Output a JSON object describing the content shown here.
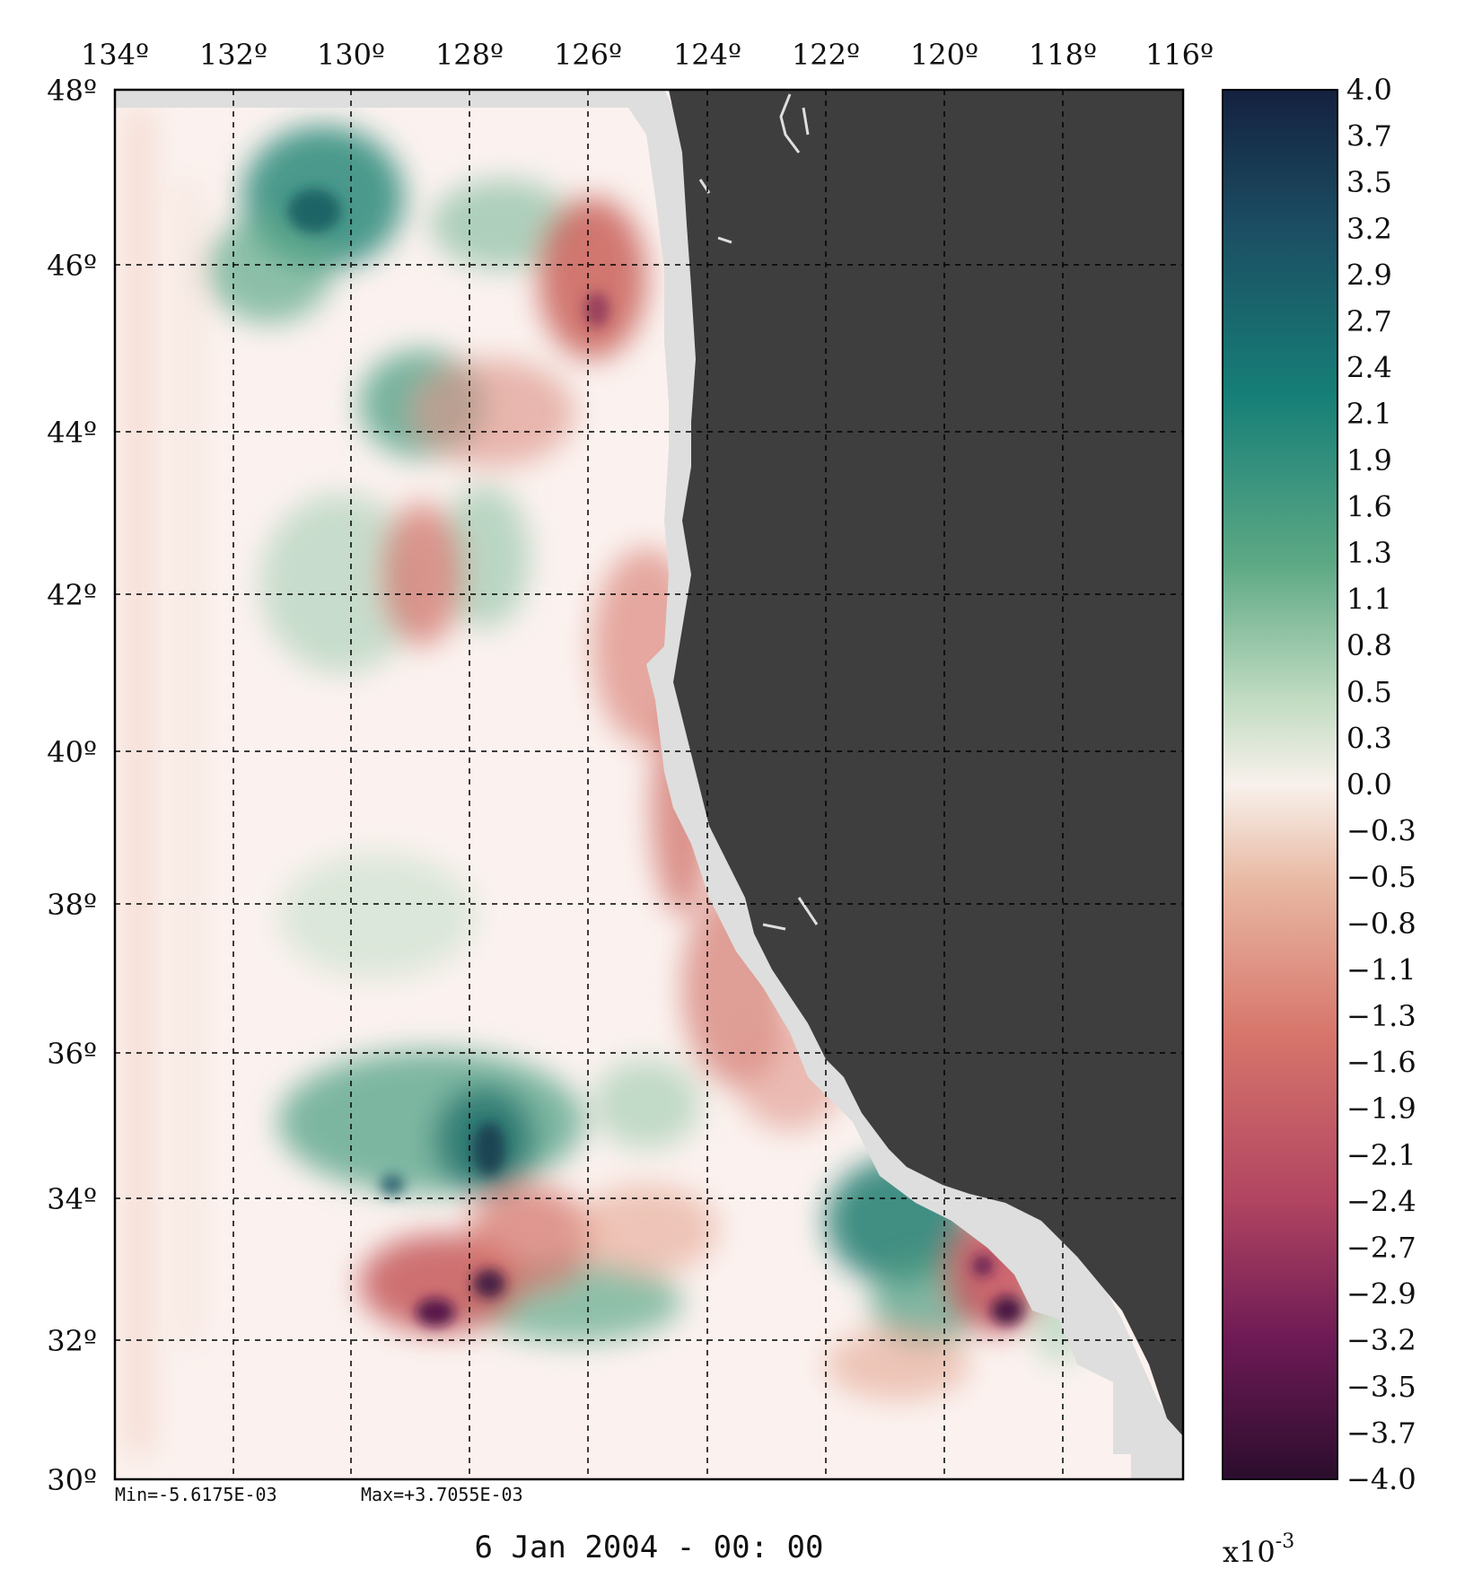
{
  "map": {
    "longitude_ticks": [
      "134º",
      "132º",
      "130º",
      "128º",
      "126º",
      "124º",
      "122º",
      "120º",
      "118º",
      "116º"
    ],
    "latitude_ticks": [
      "48º",
      "46º",
      "44º",
      "42º",
      "40º",
      "38º",
      "36º",
      "34º",
      "32º",
      "30º"
    ],
    "min_label": "Min=-5.6175E-03",
    "max_label": "Max=+3.7055E-03",
    "timestamp": "6 Jan 2004 - 00: 00"
  },
  "colorbar": {
    "tick_labels": [
      "4.0",
      "3.7",
      "3.5",
      "3.2",
      "2.9",
      "2.7",
      "2.4",
      "2.1",
      "1.9",
      "1.6",
      "1.3",
      "1.1",
      "0.8",
      "0.5",
      "0.3",
      "0.0",
      "-0.3",
      "-0.5",
      "-0.8",
      "-1.1",
      "-1.3",
      "-1.6",
      "-1.9",
      "-2.1",
      "-2.4",
      "-2.7",
      "-2.9",
      "-3.2",
      "-3.5",
      "-3.7",
      "-4.0"
    ],
    "scale_base": "x10",
    "scale_exponent": "-3",
    "colors": [
      "#14213f",
      "#1c4e63",
      "#167f77",
      "#5ca884",
      "#c2dcc2",
      "#f8f1ec",
      "#e8b9a3",
      "#d7756b",
      "#b04461",
      "#6d1a55",
      "#2b0d2d"
    ]
  },
  "colors": {
    "land": "#3e3e3e",
    "coast_mask": "#dedede",
    "ocean_neutral": "#fbf2ef",
    "positive": "#1f7d70",
    "negative": "#d06a60",
    "extreme_negative": "#4b1046"
  }
}
